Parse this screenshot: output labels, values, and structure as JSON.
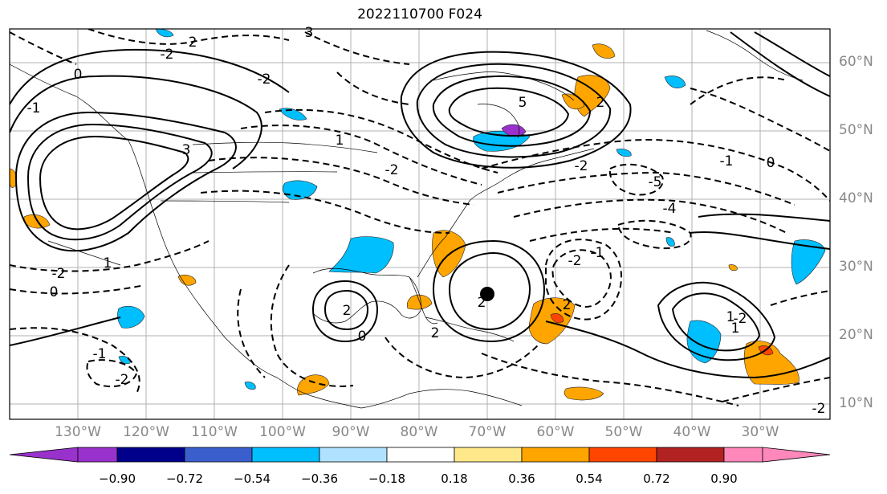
{
  "title": "2022110700 F024",
  "lat_labels": [
    "60°N",
    "50°N",
    "40°N",
    "30°N",
    "20°N",
    "10°N"
  ],
  "lon_labels": [
    "130°W",
    "120°W",
    "110°W",
    "100°W",
    "90°W",
    "80°W",
    "70°W",
    "60°W",
    "50°W",
    "40°W",
    "30°W"
  ],
  "colorbar": {
    "ticks": [
      "−0.90",
      "−0.72",
      "−0.54",
      "−0.36",
      "−0.18",
      "0.18",
      "0.36",
      "0.54",
      "0.72",
      "0.90"
    ],
    "colors": [
      "#9932cc",
      "#00008b",
      "#3a5fcd",
      "#00bfff",
      "#b0e2ff",
      "#ffffff",
      "#ffe88a",
      "#ffa500",
      "#ff4500",
      "#b22222",
      "#ff88bb"
    ]
  },
  "contour_labels": [
    "2",
    "-2",
    "3",
    "0",
    "-1",
    "1",
    "-2",
    "5",
    "0",
    "3",
    "-2",
    "1",
    "-2",
    "0",
    "2",
    "-1",
    "-2",
    "-5",
    "-4",
    "-2",
    "2",
    "2",
    "1",
    "-2",
    "-1",
    "0",
    "2",
    "-2",
    "2",
    "-1",
    "-2",
    "1"
  ]
}
